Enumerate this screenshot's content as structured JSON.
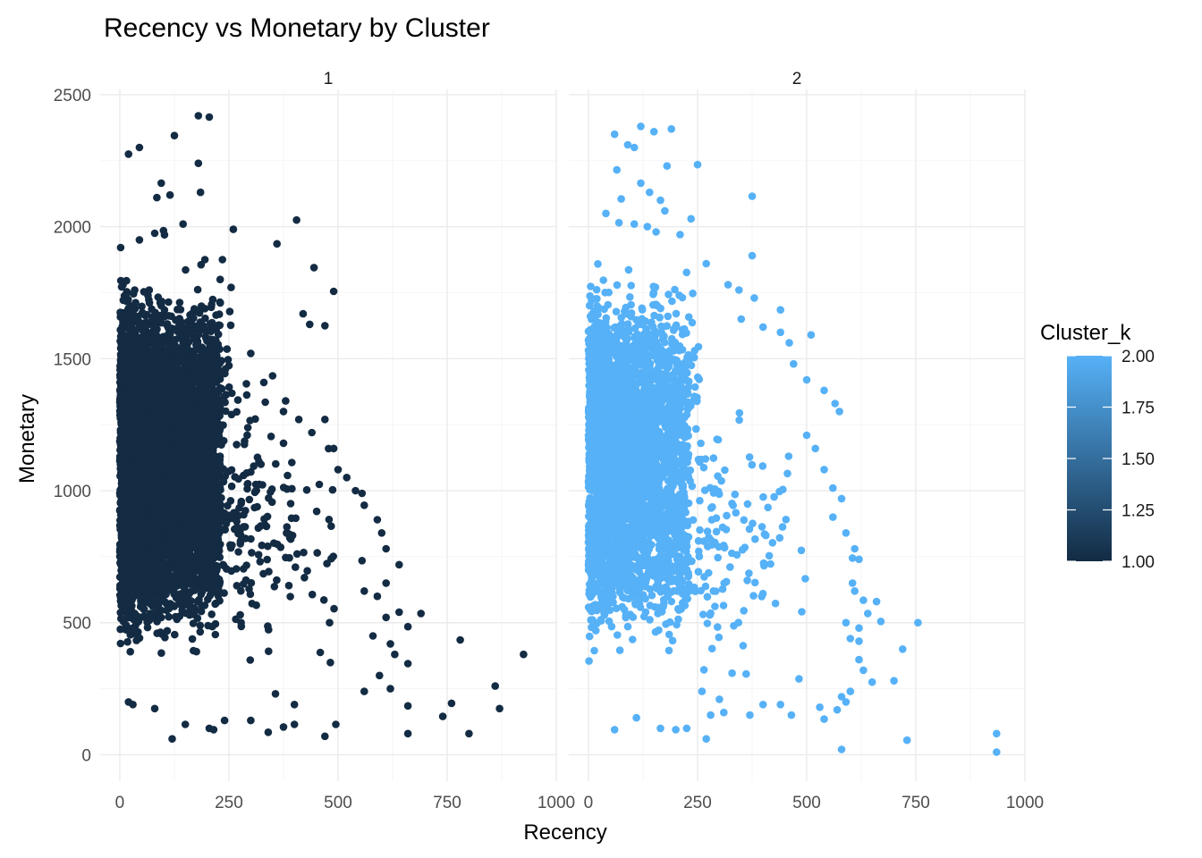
{
  "chart_data": {
    "type": "scatter",
    "title": "Recency vs Monetary by Cluster",
    "xlabel": "Recency",
    "ylabel": "Monetary",
    "xlim": [
      -45,
      1000
    ],
    "ylim": [
      -100,
      2520
    ],
    "x_ticks": [
      0,
      250,
      500,
      750,
      1000
    ],
    "x_tick_labels": [
      "0",
      "250",
      "500",
      "750",
      "1000"
    ],
    "y_ticks": [
      0,
      500,
      1000,
      1500,
      2000,
      2500
    ],
    "y_tick_labels": [
      "0",
      "500",
      "1000",
      "1500",
      "2000",
      "2500"
    ],
    "grid": true,
    "facet_by": "cluster",
    "panels": [
      {
        "strip_label": "1",
        "cluster_value": 1,
        "color": "#132B43",
        "points": [
          [
            180,
            2420
          ],
          [
            205,
            2415
          ],
          [
            125,
            2345
          ],
          [
            45,
            2300
          ],
          [
            20,
            2275
          ],
          [
            180,
            2240
          ],
          [
            95,
            2165
          ],
          [
            85,
            2110
          ],
          [
            115,
            2120
          ],
          [
            185,
            2130
          ],
          [
            260,
            1990
          ],
          [
            405,
            2025
          ],
          [
            145,
            2010
          ],
          [
            100,
            1985
          ],
          [
            80,
            1975
          ],
          [
            45,
            1950
          ],
          [
            360,
            1935
          ],
          [
            195,
            1875
          ],
          [
            235,
            1875
          ],
          [
            445,
            1845
          ],
          [
            490,
            1755
          ],
          [
            255,
            1770
          ],
          [
            420,
            1670
          ],
          [
            435,
            1630
          ],
          [
            470,
            1625
          ],
          [
            230,
            1800
          ],
          [
            300,
            1520
          ],
          [
            330,
            1410
          ],
          [
            350,
            1435
          ],
          [
            290,
            1405
          ],
          [
            380,
            1340
          ],
          [
            375,
            1300
          ],
          [
            410,
            1270
          ],
          [
            470,
            1270
          ],
          [
            440,
            1220
          ],
          [
            375,
            1180
          ],
          [
            490,
            1160
          ],
          [
            500,
            1080
          ],
          [
            520,
            1050
          ],
          [
            540,
            1000
          ],
          [
            555,
            990
          ],
          [
            560,
            945
          ],
          [
            590,
            890
          ],
          [
            600,
            840
          ],
          [
            610,
            780
          ],
          [
            555,
            735
          ],
          [
            640,
            720
          ],
          [
            610,
            650
          ],
          [
            560,
            620
          ],
          [
            590,
            600
          ],
          [
            640,
            540
          ],
          [
            690,
            535
          ],
          [
            610,
            520
          ],
          [
            660,
            485
          ],
          [
            580,
            450
          ],
          [
            620,
            420
          ],
          [
            630,
            380
          ],
          [
            660,
            345
          ],
          [
            780,
            435
          ],
          [
            925,
            380
          ],
          [
            595,
            300
          ],
          [
            620,
            250
          ],
          [
            560,
            240
          ],
          [
            660,
            185
          ],
          [
            760,
            195
          ],
          [
            860,
            260
          ],
          [
            870,
            175
          ],
          [
            740,
            145
          ],
          [
            800,
            80
          ],
          [
            660,
            80
          ],
          [
            470,
            70
          ],
          [
            495,
            115
          ],
          [
            400,
            115
          ],
          [
            375,
            105
          ],
          [
            300,
            130
          ],
          [
            340,
            85
          ],
          [
            205,
            100
          ],
          [
            215,
            95
          ],
          [
            120,
            60
          ],
          [
            150,
            115
          ],
          [
            20,
            200
          ],
          [
            30,
            190
          ],
          [
            80,
            175
          ],
          [
            240,
            130
          ],
          [
            400,
            190
          ]
        ]
      },
      {
        "strip_label": "2",
        "cluster_value": 2,
        "color": "#56B1F7",
        "points": [
          [
            120,
            2380
          ],
          [
            60,
            2350
          ],
          [
            150,
            2360
          ],
          [
            190,
            2370
          ],
          [
            90,
            2310
          ],
          [
            105,
            2300
          ],
          [
            180,
            2230
          ],
          [
            250,
            2235
          ],
          [
            65,
            2215
          ],
          [
            120,
            2165
          ],
          [
            140,
            2130
          ],
          [
            75,
            2105
          ],
          [
            375,
            2115
          ],
          [
            165,
            2100
          ],
          [
            40,
            2050
          ],
          [
            175,
            2060
          ],
          [
            235,
            2030
          ],
          [
            70,
            2015
          ],
          [
            105,
            2010
          ],
          [
            135,
            2000
          ],
          [
            155,
            1980
          ],
          [
            210,
            1970
          ],
          [
            375,
            1890
          ],
          [
            270,
            1860
          ],
          [
            320,
            1780
          ],
          [
            345,
            1760
          ],
          [
            380,
            1730
          ],
          [
            440,
            1685
          ],
          [
            350,
            1650
          ],
          [
            400,
            1620
          ],
          [
            460,
            1560
          ],
          [
            440,
            1600
          ],
          [
            510,
            1590
          ],
          [
            470,
            1480
          ],
          [
            500,
            1420
          ],
          [
            540,
            1380
          ],
          [
            565,
            1330
          ],
          [
            575,
            1300
          ],
          [
            500,
            1210
          ],
          [
            520,
            1160
          ],
          [
            540,
            1080
          ],
          [
            560,
            1010
          ],
          [
            580,
            970
          ],
          [
            560,
            900
          ],
          [
            590,
            840
          ],
          [
            610,
            780
          ],
          [
            605,
            745
          ],
          [
            620,
            740
          ],
          [
            605,
            650
          ],
          [
            610,
            620
          ],
          [
            630,
            585
          ],
          [
            660,
            580
          ],
          [
            640,
            535
          ],
          [
            670,
            505
          ],
          [
            590,
            500
          ],
          [
            620,
            480
          ],
          [
            600,
            440
          ],
          [
            620,
            430
          ],
          [
            620,
            360
          ],
          [
            630,
            320
          ],
          [
            650,
            275
          ],
          [
            700,
            280
          ],
          [
            720,
            400
          ],
          [
            755,
            500
          ],
          [
            600,
            240
          ],
          [
            580,
            220
          ],
          [
            590,
            200
          ],
          [
            570,
            170
          ],
          [
            530,
            180
          ],
          [
            540,
            135
          ],
          [
            465,
            150
          ],
          [
            440,
            190
          ],
          [
            400,
            190
          ],
          [
            370,
            150
          ],
          [
            310,
            160
          ],
          [
            280,
            150
          ],
          [
            270,
            60
          ],
          [
            225,
            100
          ],
          [
            200,
            95
          ],
          [
            165,
            100
          ],
          [
            110,
            140
          ],
          [
            60,
            95
          ],
          [
            260,
            240
          ],
          [
            300,
            210
          ],
          [
            580,
            20
          ],
          [
            730,
            55
          ],
          [
            935,
            80
          ],
          [
            935,
            10
          ]
        ]
      }
    ],
    "dense_region": {
      "note_hidden": false
    },
    "legend": {
      "title": "Cluster_k",
      "position": "right",
      "gradient": [
        "#132B43",
        "#56B1F7"
      ],
      "range": [
        1.0,
        2.0
      ],
      "ticks": [
        1.0,
        1.25,
        1.5,
        1.75,
        2.0
      ],
      "tick_labels": [
        "1.00",
        "1.25",
        "1.50",
        "1.75",
        "2.00"
      ]
    }
  }
}
